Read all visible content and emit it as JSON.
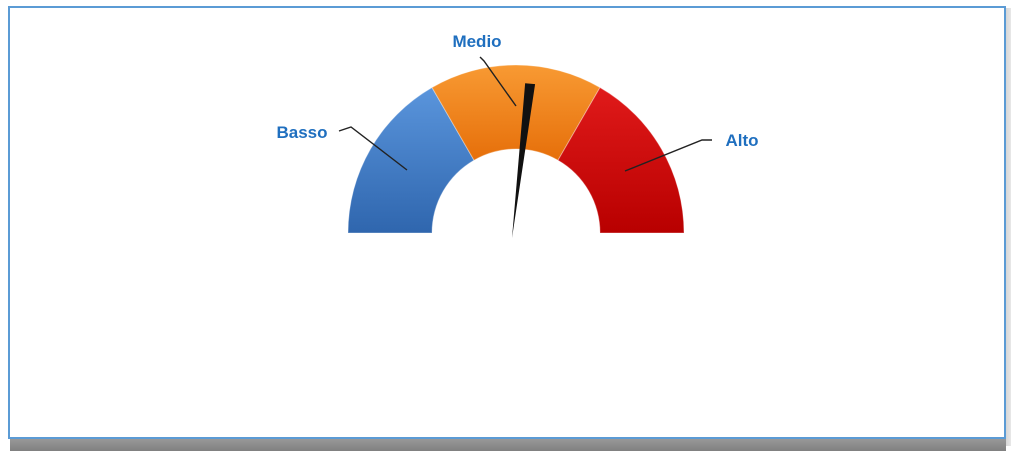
{
  "chart_data": {
    "type": "gauge",
    "title": "",
    "segments": [
      {
        "label": "Basso",
        "value": 1,
        "color": "#3d7cc9"
      },
      {
        "label": "Medio",
        "value": 1,
        "color": "#f07d16"
      },
      {
        "label": "Alto",
        "value": 1,
        "color": "#cc0000"
      }
    ],
    "needle_fraction": 0.53,
    "needle_color": "#111111",
    "label_color": "#1f6fbf"
  }
}
